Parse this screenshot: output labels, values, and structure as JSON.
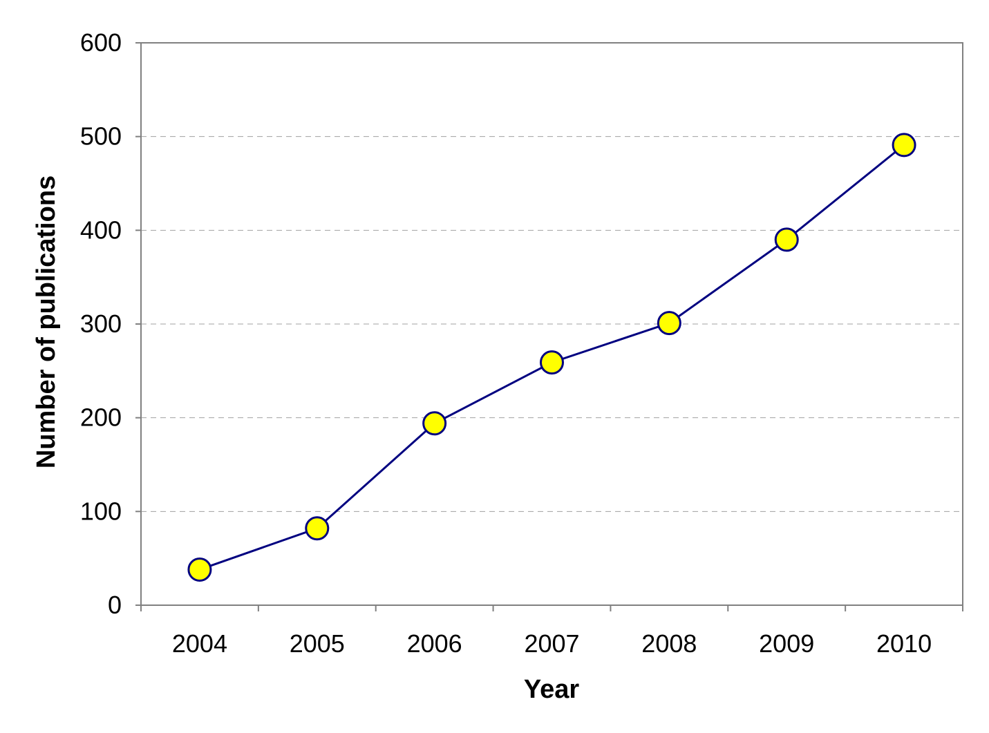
{
  "chart_data": {
    "type": "line",
    "title": "",
    "xlabel": "Year",
    "ylabel": "Number of publications",
    "categories": [
      "2004",
      "2005",
      "2006",
      "2007",
      "2008",
      "2009",
      "2010"
    ],
    "series": [
      {
        "values": [
          38,
          82,
          194,
          259,
          301,
          390,
          491
        ]
      }
    ],
    "ylim": [
      0,
      600
    ],
    "yticks": [
      "0",
      "100",
      "200",
      "300",
      "400",
      "500",
      "600"
    ],
    "grid": "horizontal dashed",
    "legend": "none",
    "colors": {
      "line": "#000080",
      "marker_fill": "#FFFF00",
      "marker_edge": "#000080",
      "frame": "#808080",
      "grid": "#A0A0A0"
    }
  }
}
